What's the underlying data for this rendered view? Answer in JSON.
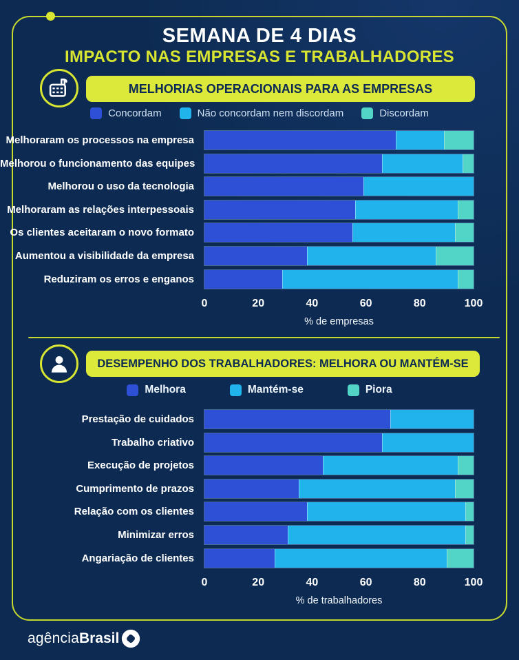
{
  "colors": {
    "background": "#0d2b52",
    "accent_yellow": "#d8e531",
    "banner_yellow": "#dce93a",
    "blue": "#2d50d7",
    "cyan": "#21b4ec",
    "teal": "#52d4c6"
  },
  "header": {
    "title": "SEMANA DE 4 DIAS",
    "subtitle": "IMPACTO NAS EMPRESAS E TRABALHADORES"
  },
  "footer": {
    "brand_light": "agência",
    "brand_bold": "Brasil"
  },
  "chart_data": [
    {
      "type": "bar",
      "orientation": "horizontal-stacked",
      "title": "MELHORIAS OPERACIONAIS PARA AS EMPRESAS",
      "icon": "factory-icon",
      "categories": [
        "Melhoraram os processos na empresa",
        "Melhorou o funcionamento das equipes",
        "Melhorou o uso da tecnologia",
        "Melhoraram as relações interpessoais",
        "Os clientes aceitaram o novo formato",
        "Aumentou a visibilidade da empresa",
        "Reduziram os erros e enganos"
      ],
      "series": [
        {
          "name": "Concordam",
          "color": "#2d50d7",
          "values": [
            71,
            66,
            59,
            56,
            55,
            38,
            29
          ]
        },
        {
          "name": "Não concordam nem discordam",
          "color": "#21b4ec",
          "values": [
            18,
            30,
            41,
            38,
            38,
            48,
            65
          ]
        },
        {
          "name": "Discordam",
          "color": "#52d4c6",
          "values": [
            11,
            4,
            0,
            6,
            7,
            14,
            6
          ]
        }
      ],
      "xlabel": "% de empresas",
      "xlim": [
        0,
        100
      ],
      "ticks": [
        0,
        20,
        40,
        60,
        80,
        100
      ],
      "grid": false,
      "legend_position": "top"
    },
    {
      "type": "bar",
      "orientation": "horizontal-stacked",
      "title": "DESEMPENHO DOS TRABALHADORES: MELHORA OU MANTÉM-SE",
      "icon": "person-icon",
      "categories": [
        "Prestação de cuidados",
        "Trabalho criativo",
        "Execução de projetos",
        "Cumprimento de prazos",
        "Relação com os clientes",
        "Minimizar erros",
        "Angariação de clientes"
      ],
      "series": [
        {
          "name": "Melhora",
          "color": "#2d50d7",
          "values": [
            69,
            66,
            44,
            35,
            38,
            31,
            26
          ]
        },
        {
          "name": "Mantém-se",
          "color": "#21b4ec",
          "values": [
            31,
            34,
            50,
            58,
            59,
            66,
            64
          ]
        },
        {
          "name": "Piora",
          "color": "#52d4c6",
          "values": [
            0,
            0,
            6,
            7,
            3,
            3,
            10
          ]
        }
      ],
      "xlabel": "% de trabalhadores",
      "xlim": [
        0,
        100
      ],
      "ticks": [
        0,
        20,
        40,
        60,
        80,
        100
      ],
      "grid": false,
      "legend_position": "top"
    }
  ]
}
